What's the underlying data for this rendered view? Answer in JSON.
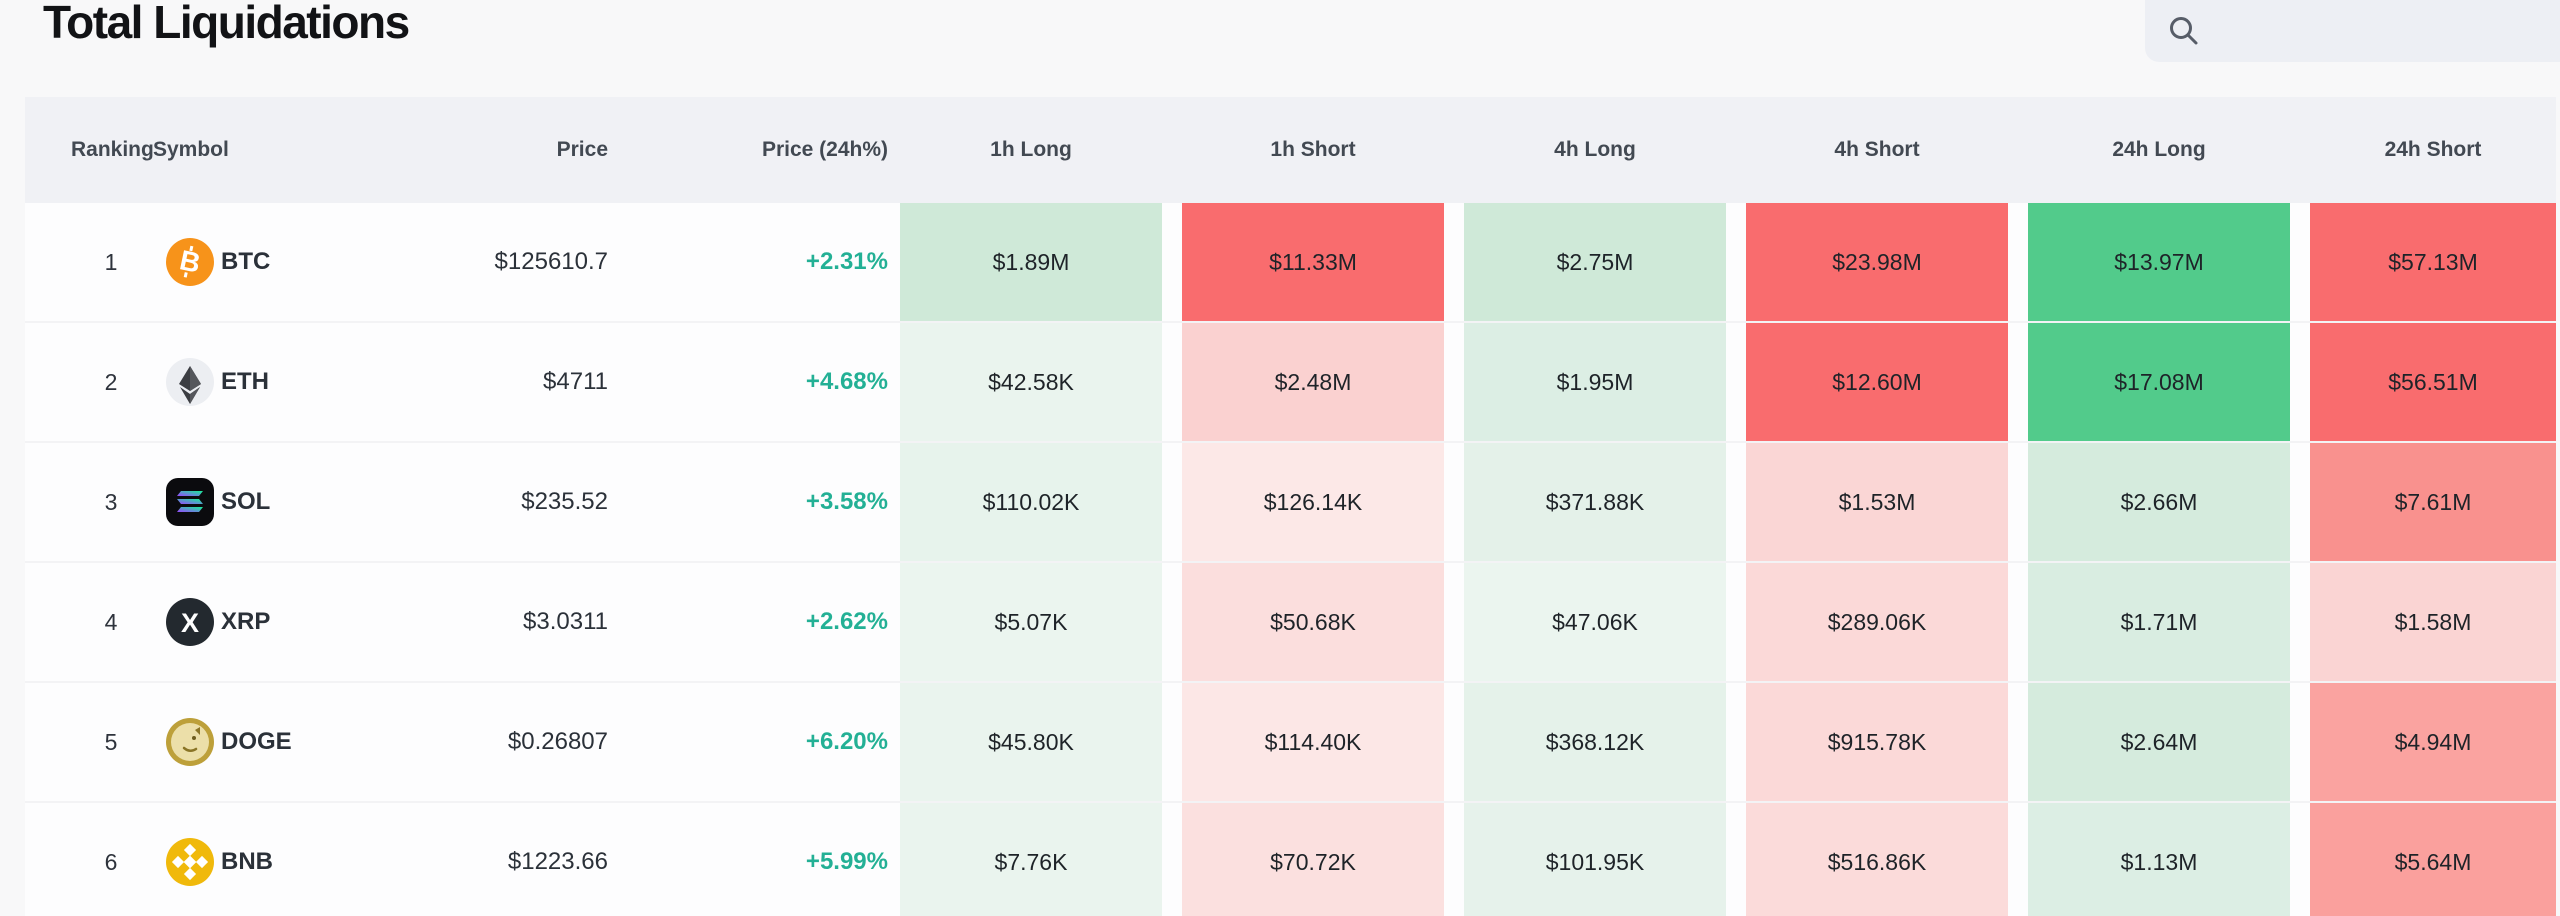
{
  "page": {
    "title": "Total Liquidations"
  },
  "search": {
    "icon": "magnifier-icon",
    "value": "",
    "placeholder": ""
  },
  "colors": {
    "accent_up": "#23b095",
    "strong_red": "#f96c6e",
    "strong_green": "#52cb8b",
    "header_bg": "#f0f1f5",
    "row_bg": "#fdfdfe"
  },
  "table": {
    "headers": [
      "Ranking",
      "Symbol",
      "Price",
      "Price (24h%)",
      "1h Long",
      "1h Short",
      "4h Long",
      "4h Short",
      "24h Long",
      "24h Short"
    ],
    "rows": [
      {
        "rank": "1",
        "symbol": "BTC",
        "icon": "btc-icon",
        "price": "$125610.7",
        "change": "+2.31%",
        "cells": [
          {
            "v": "$1.89M",
            "c": "#cfe9d8"
          },
          {
            "v": "$11.33M",
            "c": "#f96c6e"
          },
          {
            "v": "$2.75M",
            "c": "#cfe9d8"
          },
          {
            "v": "$23.98M",
            "c": "#f96c6e"
          },
          {
            "v": "$13.97M",
            "c": "#52cb8b"
          },
          {
            "v": "$57.13M",
            "c": "#f96c6e"
          }
        ]
      },
      {
        "rank": "2",
        "symbol": "ETH",
        "icon": "eth-icon",
        "price": "$4711",
        "change": "+4.68%",
        "cells": [
          {
            "v": "$42.58K",
            "c": "#eaf4ee"
          },
          {
            "v": "$2.48M",
            "c": "#fad1d0"
          },
          {
            "v": "$1.95M",
            "c": "#dceee4"
          },
          {
            "v": "$12.60M",
            "c": "#f96c6e"
          },
          {
            "v": "$17.08M",
            "c": "#52cb8b"
          },
          {
            "v": "$56.51M",
            "c": "#f96c6e"
          }
        ]
      },
      {
        "rank": "3",
        "symbol": "SOL",
        "icon": "sol-icon",
        "price": "$235.52",
        "change": "+3.58%",
        "cells": [
          {
            "v": "$110.02K",
            "c": "#e7f3ec"
          },
          {
            "v": "$126.14K",
            "c": "#fce8e7"
          },
          {
            "v": "$371.88K",
            "c": "#e4f1e9"
          },
          {
            "v": "$1.53M",
            "c": "#fad6d5"
          },
          {
            "v": "$2.66M",
            "c": "#d5ebdd"
          },
          {
            "v": "$7.61M",
            "c": "#f9918e"
          }
        ]
      },
      {
        "rank": "4",
        "symbol": "XRP",
        "icon": "xrp-icon",
        "price": "$3.0311",
        "change": "+2.62%",
        "cells": [
          {
            "v": "$5.07K",
            "c": "#ebf5ef"
          },
          {
            "v": "$50.68K",
            "c": "#fbdedd"
          },
          {
            "v": "$47.06K",
            "c": "#ebf5ef"
          },
          {
            "v": "$289.06K",
            "c": "#fbd9d8"
          },
          {
            "v": "$1.71M",
            "c": "#d9ede1"
          },
          {
            "v": "$1.58M",
            "c": "#fad4d3"
          }
        ]
      },
      {
        "rank": "5",
        "symbol": "DOGE",
        "icon": "doge-icon",
        "price": "$0.26807",
        "change": "+6.20%",
        "cells": [
          {
            "v": "$45.80K",
            "c": "#eaf4ee"
          },
          {
            "v": "$114.40K",
            "c": "#fce7e6"
          },
          {
            "v": "$368.12K",
            "c": "#e5f2ea"
          },
          {
            "v": "$915.78K",
            "c": "#fbd9d8"
          },
          {
            "v": "$2.64M",
            "c": "#d5ebdd"
          },
          {
            "v": "$4.94M",
            "c": "#faa3a0"
          }
        ]
      },
      {
        "rank": "6",
        "symbol": "BNB",
        "icon": "bnb-icon",
        "price": "$1223.66",
        "change": "+5.99%",
        "cells": [
          {
            "v": "$7.76K",
            "c": "#eaf4ee"
          },
          {
            "v": "$70.72K",
            "c": "#fbe0df"
          },
          {
            "v": "$101.95K",
            "c": "#e6f2eb"
          },
          {
            "v": "$516.86K",
            "c": "#fbdbda"
          },
          {
            "v": "$1.13M",
            "c": "#dceee4"
          },
          {
            "v": "$5.64M",
            "c": "#faa09d"
          }
        ]
      }
    ]
  }
}
